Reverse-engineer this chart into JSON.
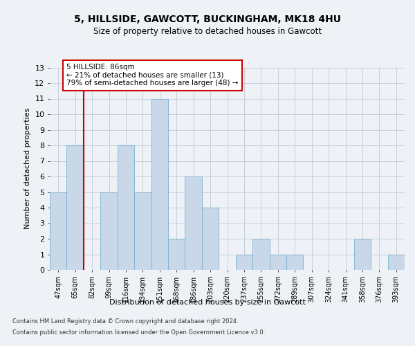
{
  "title1": "5, HILLSIDE, GAWCOTT, BUCKINGHAM, MK18 4HU",
  "title2": "Size of property relative to detached houses in Gawcott",
  "xlabel": "Distribution of detached houses by size in Gawcott",
  "ylabel": "Number of detached properties",
  "categories": [
    "47sqm",
    "65sqm",
    "82sqm",
    "99sqm",
    "116sqm",
    "134sqm",
    "151sqm",
    "168sqm",
    "186sqm",
    "203sqm",
    "220sqm",
    "237sqm",
    "255sqm",
    "272sqm",
    "289sqm",
    "307sqm",
    "324sqm",
    "341sqm",
    "358sqm",
    "376sqm",
    "393sqm"
  ],
  "values": [
    5,
    8,
    0,
    5,
    8,
    5,
    11,
    2,
    6,
    4,
    0,
    1,
    2,
    1,
    1,
    0,
    0,
    0,
    2,
    0,
    1
  ],
  "bar_color": "#c8d8e8",
  "bar_edge_color": "#7ab0d0",
  "subject_line_color": "#cc0000",
  "annotation_text": "5 HILLSIDE: 86sqm\n← 21% of detached houses are smaller (13)\n79% of semi-detached houses are larger (48) →",
  "annotation_box_color": "#ffffff",
  "annotation_box_edge_color": "#cc0000",
  "ylim": [
    0,
    13
  ],
  "yticks": [
    0,
    1,
    2,
    3,
    4,
    5,
    6,
    7,
    8,
    9,
    10,
    11,
    12,
    13
  ],
  "footer1": "Contains HM Land Registry data © Crown copyright and database right 2024.",
  "footer2": "Contains public sector information licensed under the Open Government Licence v3.0.",
  "bg_color": "#eef2f7",
  "plot_bg_color": "#eef2f7",
  "grid_color": "#c0cad4"
}
